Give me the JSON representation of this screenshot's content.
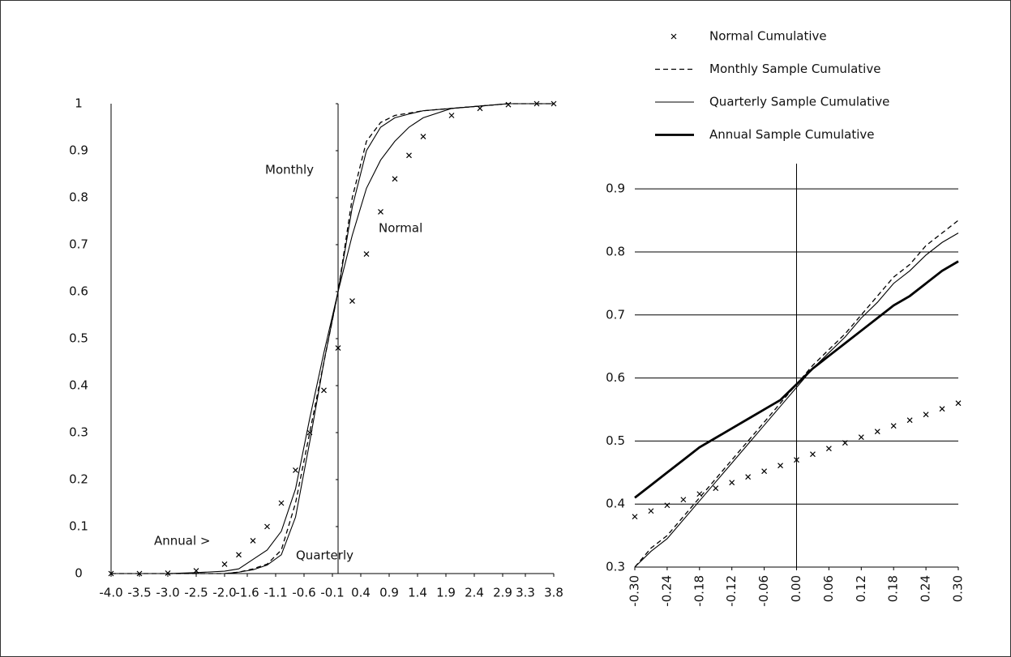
{
  "chart_data": [
    {
      "type": "line",
      "x": [
        -4,
        -3.5,
        -3,
        -2.5,
        -2,
        -1.75,
        -1.5,
        -1.25,
        -1,
        -0.75,
        -0.5,
        -0.25,
        0,
        0.25,
        0.5,
        0.75,
        1,
        1.25,
        1.5,
        2,
        2.5,
        3,
        3.5,
        3.8
      ],
      "series": [
        {
          "style": "marker",
          "color": "#000000",
          "values": [
            0,
            0,
            0.001,
            0.006,
            0.02,
            0.04,
            0.07,
            0.1,
            0.15,
            0.22,
            0.3,
            0.39,
            0.48,
            0.58,
            0.68,
            0.77,
            0.84,
            0.89,
            0.93,
            0.975,
            0.99,
            0.998,
            1,
            1
          ]
        },
        {
          "style": "dashed",
          "color": "#000000",
          "values": [
            0,
            0,
            0,
            0,
            0,
            0.003,
            0.01,
            0.02,
            0.05,
            0.15,
            0.3,
            0.45,
            0.6,
            0.8,
            0.92,
            0.96,
            0.975,
            0.98,
            0.985,
            0.99,
            0.995,
            1,
            1,
            1
          ]
        },
        {
          "style": "thin",
          "color": "#000000",
          "values": [
            0,
            0,
            0,
            0,
            0,
            0.003,
            0.008,
            0.018,
            0.04,
            0.12,
            0.28,
            0.45,
            0.6,
            0.78,
            0.9,
            0.95,
            0.97,
            0.978,
            0.985,
            0.99,
            0.995,
            1,
            1,
            1
          ]
        },
        {
          "style": "thin",
          "color": "#000000",
          "values": [
            0,
            0,
            0,
            0.002,
            0.005,
            0.01,
            0.03,
            0.05,
            0.09,
            0.18,
            0.33,
            0.47,
            0.6,
            0.72,
            0.82,
            0.88,
            0.92,
            0.95,
            0.97,
            0.99,
            0.995,
            1,
            1,
            1
          ]
        }
      ],
      "annotations": [
        "Monthly",
        "Normal",
        "Annual >",
        "Quarterly"
      ],
      "xlim": [
        -4,
        3.8
      ],
      "ylim": [
        0,
        1
      ],
      "xticks": [
        {
          "value": -4,
          "label": "-4.0"
        },
        -3.5,
        {
          "value": -3,
          "label": "-3.0"
        },
        -2.5,
        {
          "value": -2,
          "label": "-2.0"
        },
        -1.6,
        -1.1,
        -0.6,
        -0.1,
        0.4,
        0.9,
        1.4,
        1.9,
        2.4,
        2.9,
        3.3,
        3.8
      ],
      "yticks": [
        0,
        0.1,
        0.2,
        0.3,
        0.4,
        0.5,
        0.6,
        0.7,
        0.8,
        0.9,
        1
      ],
      "grid": false
    },
    {
      "type": "line",
      "x": [
        -0.3,
        -0.27,
        -0.24,
        -0.21,
        -0.18,
        -0.15,
        -0.12,
        -0.09,
        -0.06,
        -0.03,
        0,
        0.03,
        0.06,
        0.09,
        0.12,
        0.15,
        0.18,
        0.21,
        0.24,
        0.27,
        0.3
      ],
      "series": [
        {
          "name": "Normal Cumulative",
          "style": "marker",
          "color": "#000000",
          "values": [
            0.38,
            0.389,
            0.398,
            0.407,
            0.416,
            0.425,
            0.434,
            0.443,
            0.452,
            0.461,
            0.47,
            0.479,
            0.488,
            0.497,
            0.506,
            0.515,
            0.524,
            0.533,
            0.542,
            0.551,
            0.56
          ]
        },
        {
          "name": "Monthly Sample Cumulative",
          "style": "dashed",
          "color": "#000000",
          "values": [
            0.3,
            0.33,
            0.35,
            0.38,
            0.41,
            0.44,
            0.47,
            0.5,
            0.53,
            0.56,
            0.59,
            0.62,
            0.645,
            0.67,
            0.7,
            0.73,
            0.76,
            0.78,
            0.81,
            0.83,
            0.85
          ]
        },
        {
          "name": "Quarterly Sample Cumulative",
          "style": "thin",
          "color": "#000000",
          "values": [
            0.3,
            0.325,
            0.345,
            0.375,
            0.405,
            0.435,
            0.465,
            0.495,
            0.525,
            0.555,
            0.585,
            0.615,
            0.64,
            0.665,
            0.695,
            0.72,
            0.75,
            0.77,
            0.795,
            0.815,
            0.83
          ]
        },
        {
          "name": "Annual Sample Cumulative",
          "style": "thick",
          "color": "#000000",
          "values": [
            0.41,
            0.43,
            0.45,
            0.47,
            0.49,
            0.505,
            0.52,
            0.535,
            0.55,
            0.565,
            0.59,
            0.615,
            0.635,
            0.655,
            0.675,
            0.695,
            0.715,
            0.73,
            0.75,
            0.77,
            0.785
          ]
        }
      ],
      "xlim": [
        -0.3,
        0.3
      ],
      "ylim": [
        0.3,
        0.94
      ],
      "xticks": [
        {
          "value": -0.3,
          "label": "-0.30"
        },
        -0.24,
        -0.18,
        -0.12,
        -0.06,
        {
          "value": 0,
          "label": "0.00"
        },
        0.06,
        0.12,
        0.18,
        0.24,
        {
          "value": 0.3,
          "label": "0.30"
        }
      ],
      "yticks": [
        0.3,
        0.4,
        0.5,
        0.6,
        0.7,
        0.8,
        0.9
      ],
      "grid": true
    }
  ]
}
